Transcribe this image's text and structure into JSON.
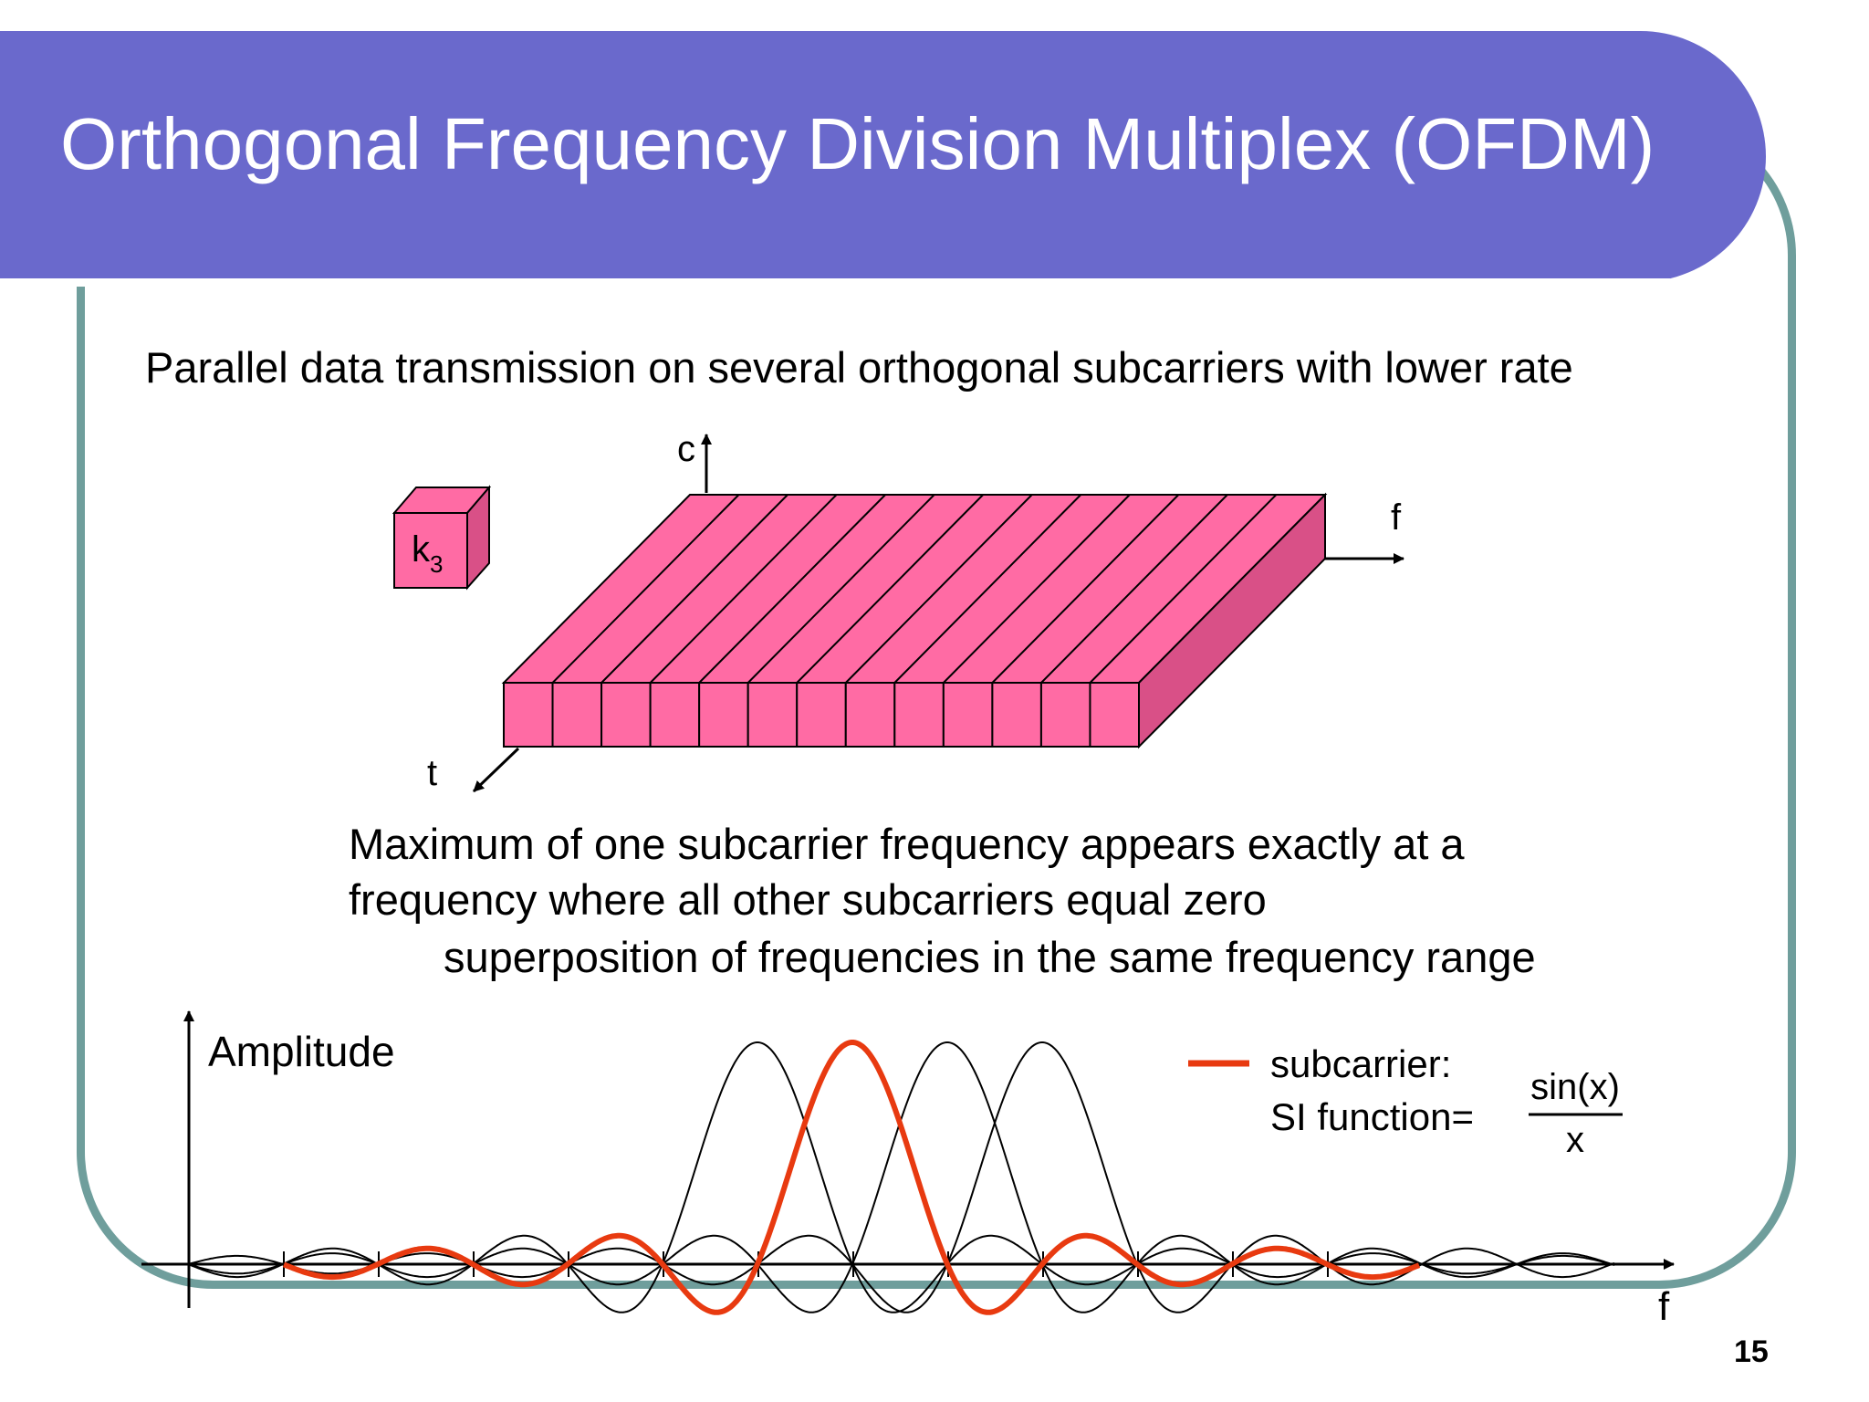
{
  "slide": {
    "title": "Orthogonal Frequency Division Multiplex (OFDM)",
    "subtitle": "Parallel data transmission on several orthogonal subcarriers with lower rate",
    "description_lines": [
      "Maximum of one subcarrier frequency appears exactly at a",
      "frequency where all other subcarriers equal zero",
      "superposition of frequencies in the same frequency range"
    ],
    "page_number": "15"
  },
  "block_diagram": {
    "axis_c": "c",
    "axis_f": "f",
    "axis_t": "t",
    "symbol_base": "k",
    "symbol_subscript": "3",
    "subcarrier_count": 13,
    "fill_color": "#ff6ba4",
    "side_color": "#d95087"
  },
  "spectrum": {
    "y_label": "Amplitude",
    "x_label": "f",
    "legend_label": "subcarrier:",
    "function_label": "SI function=",
    "numerator": "sin(x)",
    "denominator": "x",
    "highlight_color": "#e83a10",
    "curve_color": "#000000"
  },
  "colors": {
    "banner": "#6a69cc",
    "frame": "#6f9e9c"
  }
}
